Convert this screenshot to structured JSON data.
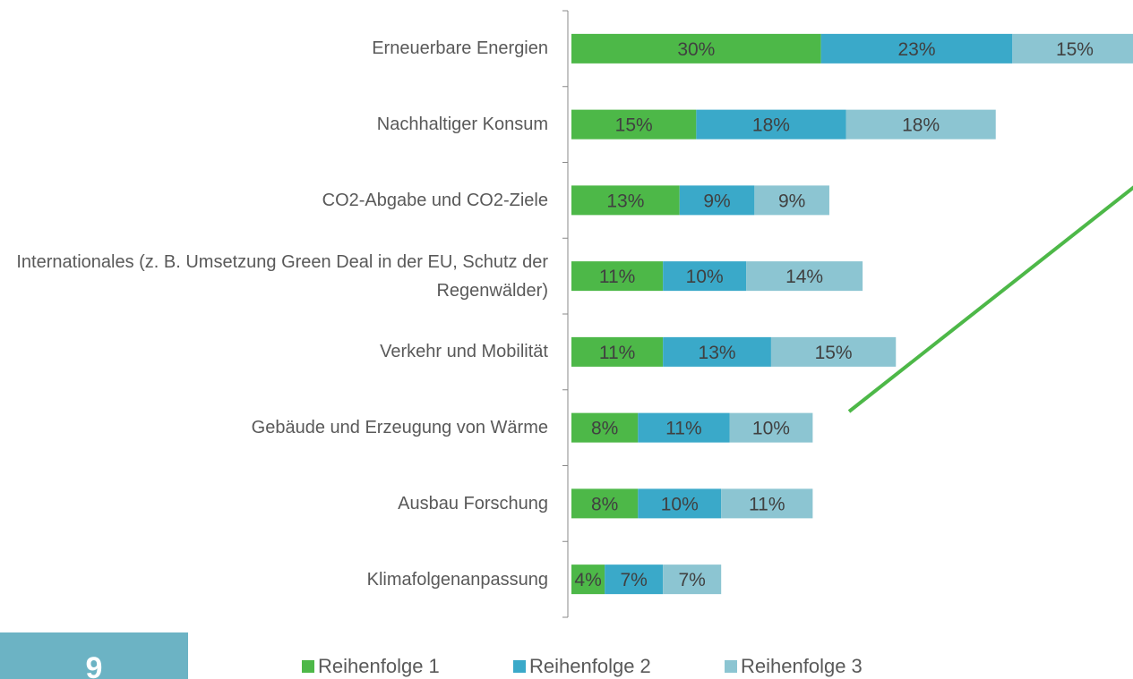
{
  "page_number": "9",
  "chart_data": {
    "type": "stacked_barh",
    "categories": [
      "Erneuerbare Energien",
      "Nachhaltiger Konsum",
      "CO2-Abgabe und CO2-Ziele",
      "Internationales (z. B. Umsetzung Green Deal in der EU, Schutz der Regenwälder)",
      "Verkehr und Mobilität",
      "Gebäude und Erzeugung von Wärme",
      "Ausbau Forschung",
      "Klimafolgenanpassung"
    ],
    "series": [
      {
        "name": "Reihenfolge 1",
        "color": "#4db848",
        "values": [
          30,
          15,
          13,
          11,
          11,
          8,
          8,
          4
        ],
        "value_labels": [
          "30%",
          "15%",
          "13%",
          "11%",
          "11%",
          "8%",
          "8%",
          "4%"
        ]
      },
      {
        "name": "Reihenfolge 2",
        "color": "#3aa9c9",
        "values": [
          23,
          18,
          9,
          10,
          13,
          11,
          10,
          7
        ],
        "value_labels": [
          "23%",
          "18%",
          "9%",
          "10%",
          "13%",
          "11%",
          "10%",
          "7%"
        ]
      },
      {
        "name": "Reihenfolge 3",
        "color": "#8cc5d2",
        "values": [
          15,
          18,
          9,
          14,
          15,
          10,
          11,
          7
        ],
        "value_labels": [
          "15%",
          "18%",
          "9%",
          "14%",
          "15%",
          "10%",
          "11%",
          "7%"
        ]
      }
    ],
    "xlim": [
      0,
      67.5
    ]
  }
}
